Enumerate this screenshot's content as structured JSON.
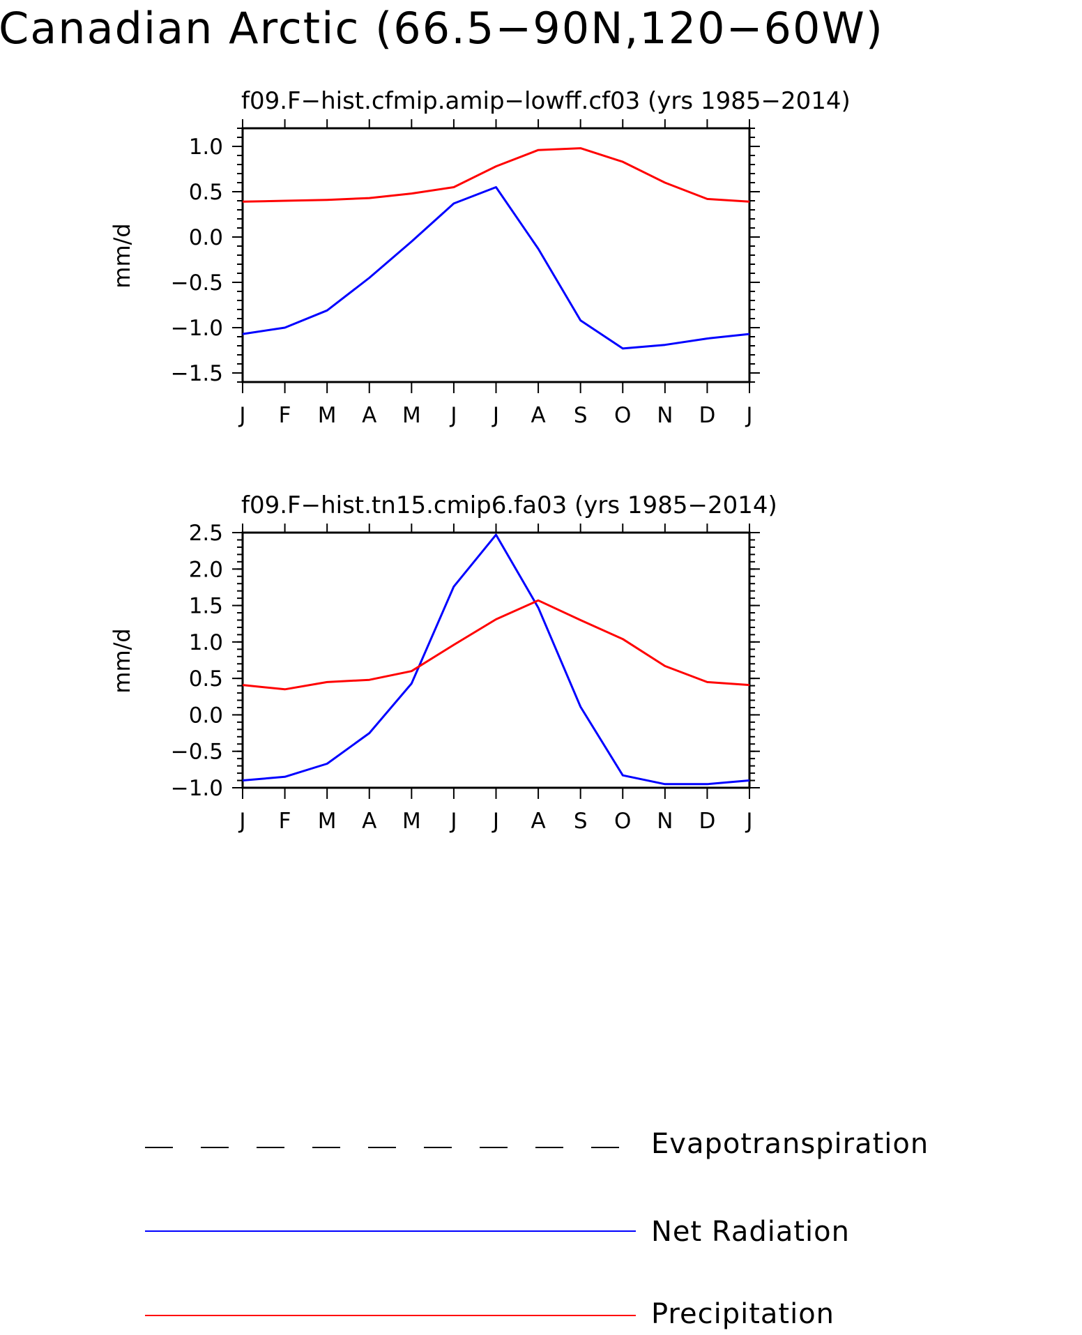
{
  "title": "Canadian Arctic (66.5-90N,120-60W)",
  "colors": {
    "precipitation": "#ff0000",
    "net_radiation": "#0000ff",
    "evapotranspiration": "#000000"
  },
  "legend": [
    {
      "label": "Evapotranspiration",
      "style": "dashed",
      "color": "#000000"
    },
    {
      "label": "Net Radiation",
      "style": "solid",
      "color": "#0000ff"
    },
    {
      "label": "Precipitation",
      "style": "solid",
      "color": "#ff0000"
    }
  ],
  "chart_data": [
    {
      "type": "line",
      "title": "f09.F-hist.cfmip.amip-lowff.cf03 (yrs 1985-2014)",
      "xlabel": "",
      "ylabel": "mm/d",
      "categories": [
        "J",
        "F",
        "M",
        "A",
        "M",
        "J",
        "J",
        "A",
        "S",
        "O",
        "N",
        "D",
        "J"
      ],
      "ylim": [
        -1.6,
        1.2
      ],
      "yticks": [
        -1.5,
        -1.0,
        -0.5,
        0.0,
        0.5,
        1.0
      ],
      "ytick_labels": [
        "-1.5",
        "-1.0",
        "-0.5",
        "0.0",
        "0.5",
        "1.0"
      ],
      "series": [
        {
          "name": "Net Radiation",
          "color": "#0000ff",
          "values": [
            -1.07,
            -1.0,
            -0.81,
            -0.45,
            -0.05,
            0.37,
            0.55,
            -0.13,
            -0.92,
            -1.23,
            -1.19,
            -1.12,
            -1.07
          ]
        },
        {
          "name": "Precipitation",
          "color": "#ff0000",
          "values": [
            0.39,
            0.4,
            0.41,
            0.43,
            0.48,
            0.55,
            0.78,
            0.96,
            0.98,
            0.83,
            0.6,
            0.42,
            0.39
          ]
        }
      ]
    },
    {
      "type": "line",
      "title": "f09.F-hist.tn15.cmip6.fa03 (yrs 1985-2014)",
      "xlabel": "",
      "ylabel": "mm/d",
      "categories": [
        "J",
        "F",
        "M",
        "A",
        "M",
        "J",
        "J",
        "A",
        "S",
        "O",
        "N",
        "D",
        "J"
      ],
      "ylim": [
        -1.0,
        2.5
      ],
      "yticks": [
        -1.0,
        -0.5,
        0.0,
        0.5,
        1.0,
        1.5,
        2.0,
        2.5
      ],
      "ytick_labels": [
        "-1.0",
        "-0.5",
        "0.0",
        "0.5",
        "1.0",
        "1.5",
        "2.0",
        "2.5"
      ],
      "series": [
        {
          "name": "Net Radiation",
          "color": "#0000ff",
          "values": [
            -0.9,
            -0.85,
            -0.67,
            -0.25,
            0.43,
            1.76,
            2.47,
            1.47,
            0.11,
            -0.83,
            -0.95,
            -0.95,
            -0.9
          ]
        },
        {
          "name": "Precipitation",
          "color": "#ff0000",
          "values": [
            0.41,
            0.35,
            0.45,
            0.48,
            0.6,
            0.96,
            1.31,
            1.57,
            1.3,
            1.04,
            0.67,
            0.45,
            0.41
          ]
        }
      ]
    }
  ]
}
